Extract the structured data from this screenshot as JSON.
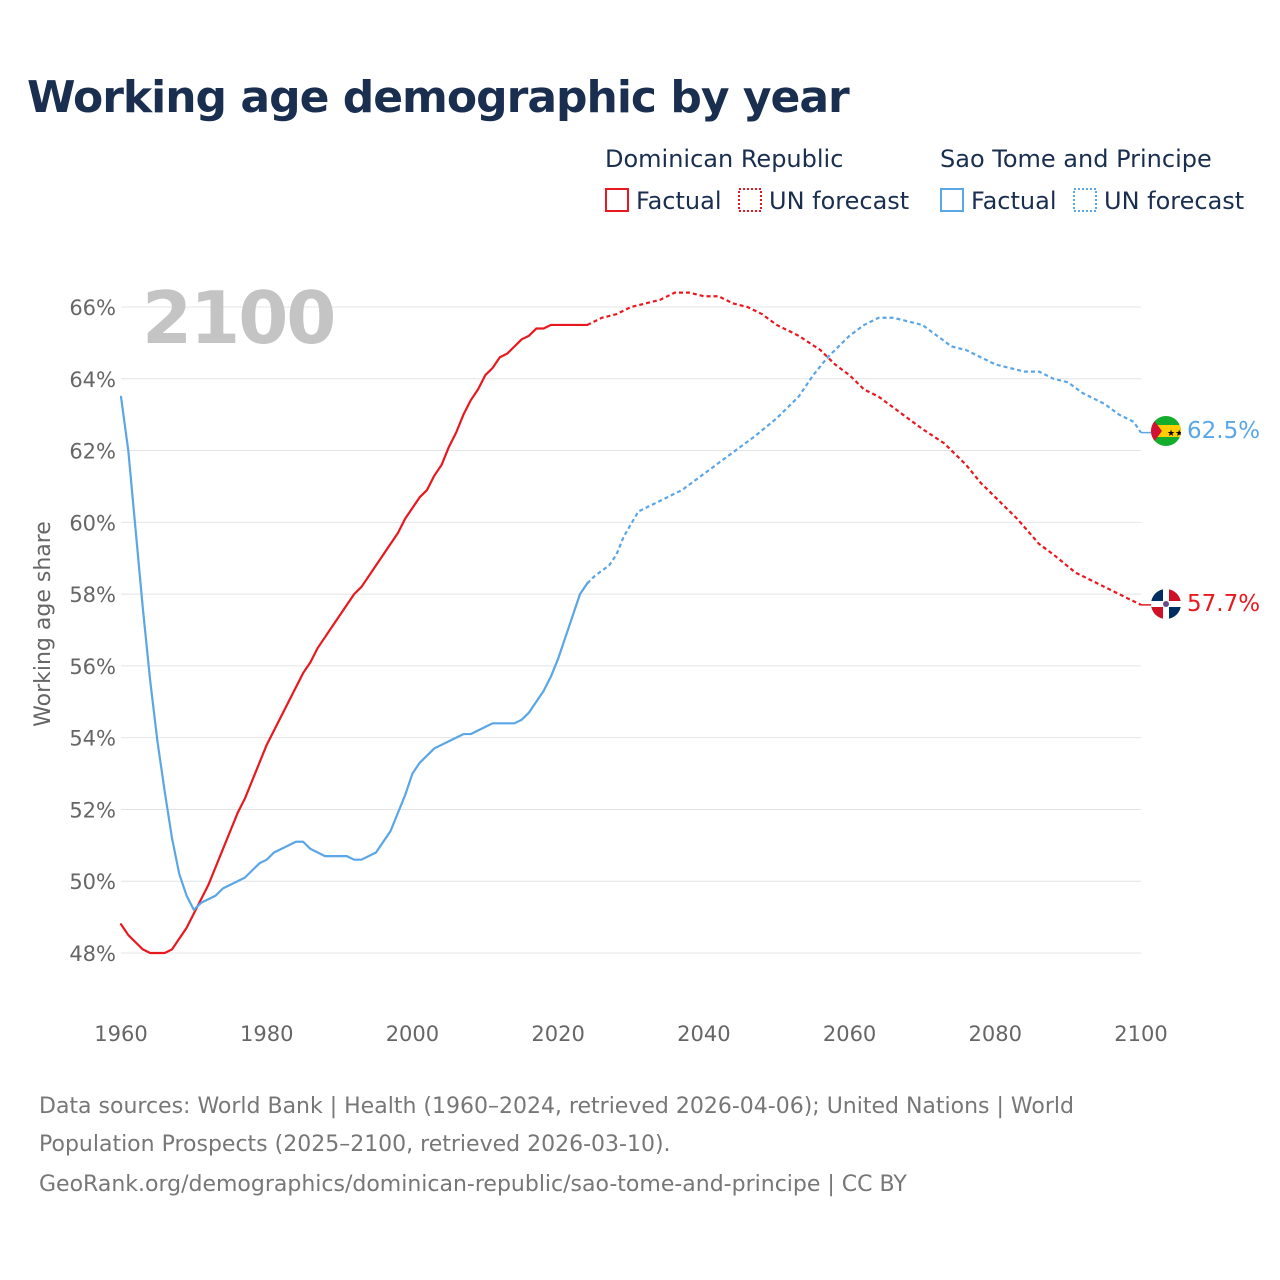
{
  "title": "Working age demographic by year",
  "legend": {
    "groups": [
      {
        "name": "Dominican Republic",
        "color": "#e8191e",
        "items": [
          {
            "label": "Factual",
            "style": "solid"
          },
          {
            "label": "UN forecast",
            "style": "dotted"
          }
        ]
      },
      {
        "name": "Sao Tome and Principe",
        "color": "#5aa6e6",
        "items": [
          {
            "label": "Factual",
            "style": "solid"
          },
          {
            "label": "UN forecast",
            "style": "dotted"
          }
        ]
      }
    ]
  },
  "year_overlay": "2100",
  "end_labels": [
    {
      "series": "Sao Tome and Principe",
      "text": "62.5%",
      "color": "#5aa6e6",
      "flag": "sao-tome-and-principe"
    },
    {
      "series": "Dominican Republic",
      "text": "57.7%",
      "color": "#e8191e",
      "flag": "dominican-republic"
    }
  ],
  "footer": {
    "line1": "Data sources: World Bank | Health (1960–2024, retrieved 2026-04-06); United Nations | World",
    "line2": "Population Prospects (2025–2100, retrieved 2026-03-10).",
    "line3": "GeoRank.org/demographics/dominican-republic/sao-tome-and-principe | CC BY"
  },
  "chart_data": {
    "type": "line",
    "title": "Working age demographic by year",
    "xlabel": "",
    "ylabel": "Working age share",
    "xlim": [
      1960,
      2100
    ],
    "ylim": [
      47,
      67
    ],
    "x_ticks": [
      1960,
      1980,
      2000,
      2020,
      2040,
      2060,
      2080,
      2100
    ],
    "y_ticks": [
      48,
      50,
      52,
      54,
      56,
      58,
      60,
      62,
      64,
      66
    ],
    "y_tick_labels": [
      "48%",
      "50%",
      "52%",
      "54%",
      "56%",
      "58%",
      "60%",
      "62%",
      "64%",
      "66%"
    ],
    "factual_end_year": 2024,
    "grid": true,
    "series": [
      {
        "name": "Dominican Republic",
        "color": "#e8191e",
        "points": [
          [
            1960,
            48.8
          ],
          [
            1961,
            48.5
          ],
          [
            1962,
            48.3
          ],
          [
            1963,
            48.1
          ],
          [
            1964,
            48.0
          ],
          [
            1965,
            48.0
          ],
          [
            1966,
            48.0
          ],
          [
            1967,
            48.1
          ],
          [
            1968,
            48.4
          ],
          [
            1969,
            48.7
          ],
          [
            1970,
            49.1
          ],
          [
            1971,
            49.5
          ],
          [
            1972,
            49.9
          ],
          [
            1973,
            50.4
          ],
          [
            1974,
            50.9
          ],
          [
            1975,
            51.4
          ],
          [
            1976,
            51.9
          ],
          [
            1977,
            52.3
          ],
          [
            1978,
            52.8
          ],
          [
            1979,
            53.3
          ],
          [
            1980,
            53.8
          ],
          [
            1982,
            54.6
          ],
          [
            1984,
            55.4
          ],
          [
            1985,
            55.8
          ],
          [
            1986,
            56.1
          ],
          [
            1987,
            56.5
          ],
          [
            1988,
            56.8
          ],
          [
            1990,
            57.4
          ],
          [
            1992,
            58.0
          ],
          [
            1993,
            58.2
          ],
          [
            1995,
            58.8
          ],
          [
            1997,
            59.4
          ],
          [
            1998,
            59.7
          ],
          [
            1999,
            60.1
          ],
          [
            2000,
            60.4
          ],
          [
            2001,
            60.7
          ],
          [
            2002,
            60.9
          ],
          [
            2003,
            61.3
          ],
          [
            2004,
            61.6
          ],
          [
            2005,
            62.1
          ],
          [
            2006,
            62.5
          ],
          [
            2007,
            63.0
          ],
          [
            2008,
            63.4
          ],
          [
            2009,
            63.7
          ],
          [
            2010,
            64.1
          ],
          [
            2011,
            64.3
          ],
          [
            2012,
            64.6
          ],
          [
            2013,
            64.7
          ],
          [
            2014,
            64.9
          ],
          [
            2015,
            65.1
          ],
          [
            2016,
            65.2
          ],
          [
            2017,
            65.4
          ],
          [
            2018,
            65.4
          ],
          [
            2019,
            65.5
          ],
          [
            2020,
            65.5
          ],
          [
            2022,
            65.5
          ],
          [
            2024,
            65.5
          ],
          [
            2025,
            65.6
          ],
          [
            2026,
            65.7
          ],
          [
            2028,
            65.8
          ],
          [
            2030,
            66.0
          ],
          [
            2032,
            66.1
          ],
          [
            2034,
            66.2
          ],
          [
            2036,
            66.4
          ],
          [
            2038,
            66.4
          ],
          [
            2040,
            66.3
          ],
          [
            2042,
            66.3
          ],
          [
            2044,
            66.1
          ],
          [
            2046,
            66.0
          ],
          [
            2048,
            65.8
          ],
          [
            2050,
            65.5
          ],
          [
            2053,
            65.2
          ],
          [
            2056,
            64.8
          ],
          [
            2058,
            64.4
          ],
          [
            2060,
            64.1
          ],
          [
            2062,
            63.7
          ],
          [
            2064,
            63.5
          ],
          [
            2066,
            63.2
          ],
          [
            2068,
            62.9
          ],
          [
            2070,
            62.6
          ],
          [
            2073,
            62.2
          ],
          [
            2076,
            61.6
          ],
          [
            2078,
            61.1
          ],
          [
            2080,
            60.7
          ],
          [
            2083,
            60.1
          ],
          [
            2086,
            59.4
          ],
          [
            2088,
            59.1
          ],
          [
            2091,
            58.6
          ],
          [
            2094,
            58.3
          ],
          [
            2097,
            58.0
          ],
          [
            2100,
            57.7
          ]
        ]
      },
      {
        "name": "Sao Tome and Principe",
        "color": "#5aa6e6",
        "points": [
          [
            1960,
            63.5
          ],
          [
            1961,
            62.0
          ],
          [
            1962,
            59.8
          ],
          [
            1963,
            57.6
          ],
          [
            1964,
            55.6
          ],
          [
            1965,
            53.9
          ],
          [
            1966,
            52.5
          ],
          [
            1967,
            51.2
          ],
          [
            1968,
            50.2
          ],
          [
            1969,
            49.6
          ],
          [
            1970,
            49.2
          ],
          [
            1971,
            49.4
          ],
          [
            1973,
            49.6
          ],
          [
            1974,
            49.8
          ],
          [
            1977,
            50.1
          ],
          [
            1979,
            50.5
          ],
          [
            1980,
            50.6
          ],
          [
            1981,
            50.8
          ],
          [
            1983,
            51.0
          ],
          [
            1984,
            51.1
          ],
          [
            1985,
            51.1
          ],
          [
            1986,
            50.9
          ],
          [
            1988,
            50.7
          ],
          [
            1991,
            50.7
          ],
          [
            1992,
            50.6
          ],
          [
            1993,
            50.6
          ],
          [
            1995,
            50.8
          ],
          [
            1997,
            51.4
          ],
          [
            1999,
            52.4
          ],
          [
            2000,
            53.0
          ],
          [
            2001,
            53.3
          ],
          [
            2003,
            53.7
          ],
          [
            2005,
            53.9
          ],
          [
            2007,
            54.1
          ],
          [
            2008,
            54.1
          ],
          [
            2010,
            54.3
          ],
          [
            2011,
            54.4
          ],
          [
            2013,
            54.4
          ],
          [
            2014,
            54.4
          ],
          [
            2015,
            54.5
          ],
          [
            2016,
            54.7
          ],
          [
            2018,
            55.3
          ],
          [
            2019,
            55.7
          ],
          [
            2020,
            56.2
          ],
          [
            2021,
            56.8
          ],
          [
            2022,
            57.4
          ],
          [
            2023,
            58.0
          ],
          [
            2024,
            58.3
          ],
          [
            2025,
            58.5
          ],
          [
            2027,
            58.8
          ],
          [
            2028,
            59.1
          ],
          [
            2029,
            59.6
          ],
          [
            2031,
            60.3
          ],
          [
            2033,
            60.5
          ],
          [
            2035,
            60.7
          ],
          [
            2037,
            60.9
          ],
          [
            2039,
            61.2
          ],
          [
            2041,
            61.5
          ],
          [
            2043,
            61.8
          ],
          [
            2045,
            62.1
          ],
          [
            2047,
            62.4
          ],
          [
            2050,
            62.9
          ],
          [
            2053,
            63.5
          ],
          [
            2055,
            64.1
          ],
          [
            2057,
            64.6
          ],
          [
            2060,
            65.2
          ],
          [
            2062,
            65.5
          ],
          [
            2064,
            65.7
          ],
          [
            2066,
            65.7
          ],
          [
            2068,
            65.6
          ],
          [
            2070,
            65.5
          ],
          [
            2072,
            65.2
          ],
          [
            2074,
            64.9
          ],
          [
            2076,
            64.8
          ],
          [
            2078,
            64.6
          ],
          [
            2080,
            64.4
          ],
          [
            2082,
            64.3
          ],
          [
            2084,
            64.2
          ],
          [
            2086,
            64.2
          ],
          [
            2088,
            64.0
          ],
          [
            2090,
            63.9
          ],
          [
            2092,
            63.6
          ],
          [
            2095,
            63.3
          ],
          [
            2097,
            63.0
          ],
          [
            2099,
            62.8
          ],
          [
            2100,
            62.5
          ]
        ]
      }
    ]
  }
}
